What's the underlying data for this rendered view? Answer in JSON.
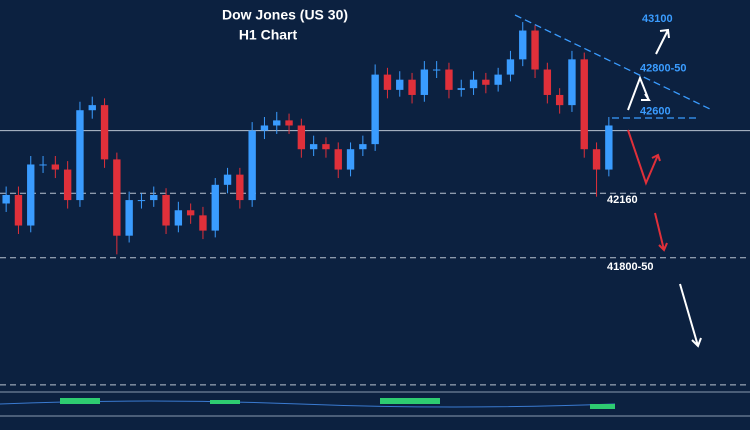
{
  "chart_data": {
    "type": "candlestick",
    "title": "Dow Jones (US 30)",
    "subtitle": "H1 Chart",
    "ylim": [
      41000,
      43300
    ],
    "up_color": "#3a9cff",
    "down_color": "#e0303a",
    "open": [
      42100,
      42150,
      41970,
      42330,
      42330,
      42300,
      42120,
      42650,
      42680,
      42360,
      41910,
      42120,
      42120,
      42150,
      41970,
      42060,
      42030,
      41940,
      42210,
      42270,
      42120,
      42530,
      42560,
      42590,
      42560,
      42420,
      42450,
      42420,
      42300,
      42420,
      42450,
      42860,
      42770,
      42830,
      42740,
      42890,
      42890,
      42770,
      42780,
      42830,
      42800,
      42860,
      42950,
      43120,
      42890,
      42740,
      42680,
      42950,
      42420,
      42300
    ],
    "high": [
      42200,
      42200,
      42380,
      42380,
      42380,
      42350,
      42700,
      42730,
      42720,
      42400,
      42170,
      42160,
      42200,
      42190,
      42110,
      42100,
      42080,
      42250,
      42310,
      42310,
      42580,
      42610,
      42640,
      42630,
      42600,
      42500,
      42490,
      42460,
      42460,
      42500,
      42920,
      42900,
      42880,
      42870,
      42940,
      42940,
      42930,
      42830,
      42880,
      42870,
      42900,
      43000,
      43170,
      43150,
      42930,
      42780,
      43000,
      42990,
      42460,
      42610
    ],
    "low": [
      42050,
      41920,
      41930,
      42280,
      42250,
      42070,
      42080,
      42600,
      42310,
      41800,
      41870,
      42070,
      42080,
      41920,
      41930,
      41980,
      41890,
      41900,
      42160,
      42070,
      42080,
      42480,
      42510,
      42510,
      42370,
      42380,
      42370,
      42250,
      42260,
      42380,
      42410,
      42720,
      42730,
      42690,
      42700,
      42840,
      42720,
      42730,
      42740,
      42750,
      42760,
      42820,
      42910,
      42840,
      42690,
      42630,
      42640,
      42370,
      42140,
      42260
    ],
    "close": [
      42150,
      41970,
      42330,
      42330,
      42300,
      42120,
      42650,
      42680,
      42360,
      41910,
      42120,
      42120,
      42150,
      41970,
      42060,
      42030,
      41940,
      42210,
      42270,
      42120,
      42530,
      42560,
      42590,
      42560,
      42420,
      42450,
      42420,
      42300,
      42420,
      42450,
      42860,
      42770,
      42830,
      42740,
      42890,
      42890,
      42770,
      42780,
      42830,
      42800,
      42860,
      42950,
      43120,
      42890,
      42740,
      42680,
      42950,
      42420,
      42300,
      42560
    ],
    "levels": [
      {
        "value": 42530,
        "style": "solid"
      },
      {
        "value": 42160,
        "style": "dashed"
      },
      {
        "value": 41780,
        "style": "dashed"
      },
      {
        "value": 41030,
        "style": "dashed"
      }
    ],
    "annotations": [
      {
        "label": "43100",
        "value": 43100,
        "color": "#3a9cff"
      },
      {
        "label": "42800-50",
        "value": 42825,
        "color": "#3a9cff"
      },
      {
        "label": "42600",
        "value": 42600,
        "color": "#3a9cff"
      },
      {
        "label": "42160",
        "value": 42160,
        "color": "#ffffff"
      },
      {
        "label": "41800-50",
        "value": 41825,
        "color": "#ffffff"
      }
    ]
  }
}
